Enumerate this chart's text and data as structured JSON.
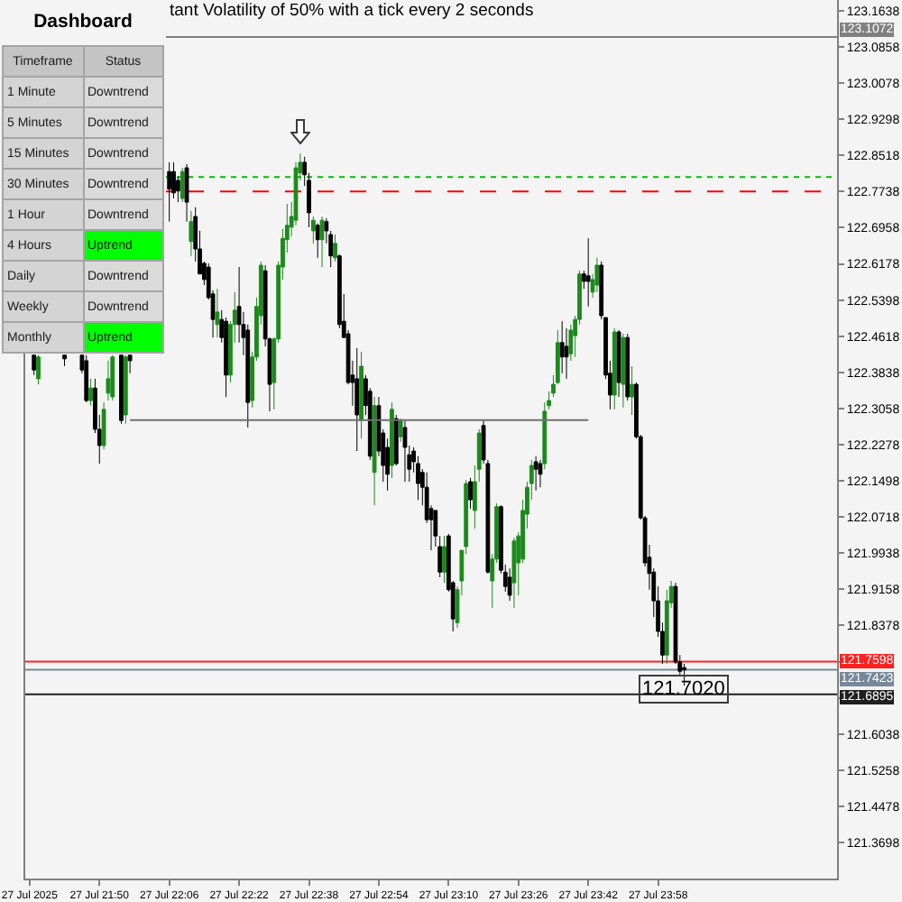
{
  "chart_data": [
    {
      "type": "candlestick",
      "title": "tant Volatility of 50% with a tick every 2 seconds",
      "x": [
        "2025-07-27T21:35",
        "2025-07-27T21:36",
        "2025-07-27T21:42",
        "2025-07-27T21:46",
        "2025-07-27T21:47",
        "2025-07-27T21:48",
        "2025-07-27T21:49",
        "2025-07-27T21:50",
        "2025-07-27T21:51",
        "2025-07-27T21:52",
        "2025-07-27T21:53",
        "2025-07-27T21:55",
        "2025-07-27T21:56",
        "2025-07-27T21:57",
        "2025-07-27T22:06",
        "2025-07-27T22:07",
        "2025-07-27T22:08",
        "2025-07-27T22:09",
        "2025-07-27T22:10",
        "2025-07-27T22:11",
        "2025-07-27T22:12",
        "2025-07-27T22:13",
        "2025-07-27T22:14",
        "2025-07-27T22:15",
        "2025-07-27T22:16",
        "2025-07-27T22:17",
        "2025-07-27T22:18",
        "2025-07-27T22:19",
        "2025-07-27T22:20",
        "2025-07-27T22:21",
        "2025-07-27T22:22",
        "2025-07-27T22:23",
        "2025-07-27T22:24",
        "2025-07-27T22:25",
        "2025-07-27T22:26",
        "2025-07-27T22:27",
        "2025-07-27T22:28",
        "2025-07-27T22:29",
        "2025-07-27T22:30",
        "2025-07-27T22:31",
        "2025-07-27T22:32",
        "2025-07-27T22:33",
        "2025-07-27T22:34",
        "2025-07-27T22:35",
        "2025-07-27T22:36",
        "2025-07-27T22:37",
        "2025-07-27T22:38",
        "2025-07-27T22:39",
        "2025-07-27T22:40",
        "2025-07-27T22:41",
        "2025-07-27T22:42",
        "2025-07-27T22:43",
        "2025-07-27T22:44",
        "2025-07-27T22:45",
        "2025-07-27T22:46",
        "2025-07-27T22:47",
        "2025-07-27T22:48",
        "2025-07-27T22:49",
        "2025-07-27T22:50",
        "2025-07-27T22:51",
        "2025-07-27T22:52",
        "2025-07-27T22:53",
        "2025-07-27T22:54",
        "2025-07-27T22:55",
        "2025-07-27T22:56",
        "2025-07-27T22:57",
        "2025-07-27T22:58",
        "2025-07-27T22:59",
        "2025-07-27T23:00",
        "2025-07-27T23:01",
        "2025-07-27T23:02",
        "2025-07-27T23:03",
        "2025-07-27T23:04",
        "2025-07-27T23:05",
        "2025-07-27T23:06",
        "2025-07-27T23:07",
        "2025-07-27T23:08",
        "2025-07-27T23:09",
        "2025-07-27T23:10",
        "2025-07-27T23:11",
        "2025-07-27T23:12",
        "2025-07-27T23:13",
        "2025-07-27T23:14",
        "2025-07-27T23:15",
        "2025-07-27T23:16",
        "2025-07-27T23:17",
        "2025-07-27T23:18",
        "2025-07-27T23:19",
        "2025-07-27T23:20",
        "2025-07-27T23:21",
        "2025-07-27T23:22",
        "2025-07-27T23:23",
        "2025-07-27T23:24",
        "2025-07-27T23:25",
        "2025-07-27T23:26",
        "2025-07-27T23:27",
        "2025-07-27T23:28",
        "2025-07-27T23:29",
        "2025-07-27T23:30",
        "2025-07-27T23:31",
        "2025-07-27T23:32",
        "2025-07-27T23:33",
        "2025-07-27T23:34",
        "2025-07-27T23:35",
        "2025-07-27T23:36",
        "2025-07-27T23:37",
        "2025-07-27T23:38",
        "2025-07-27T23:39",
        "2025-07-27T23:40",
        "2025-07-27T23:41",
        "2025-07-27T23:42",
        "2025-07-27T23:43",
        "2025-07-27T23:44",
        "2025-07-27T23:45",
        "2025-07-27T23:46",
        "2025-07-27T23:47",
        "2025-07-27T23:48",
        "2025-07-27T23:49",
        "2025-07-27T23:50",
        "2025-07-27T23:51",
        "2025-07-27T23:52",
        "2025-07-27T23:53",
        "2025-07-27T23:54",
        "2025-07-27T23:55",
        "2025-07-27T23:56",
        "2025-07-27T23:57",
        "2025-07-27T23:58",
        "2025-07-27T23:59",
        "2025-07-28T00:00",
        "2025-07-28T00:01",
        "2025-07-28T00:02",
        "2025-07-28T00:03",
        "2025-07-28T00:04"
      ],
      "ohlc": [
        [
          122.421,
          122.421,
          122.378,
          122.389
        ],
        [
          122.37,
          122.421,
          122.358,
          122.417
        ],
        [
          122.421,
          122.421,
          122.397,
          122.413
        ],
        [
          122.421,
          122.421,
          122.382,
          122.389
        ],
        [
          122.409,
          122.421,
          122.319,
          122.323
        ],
        [
          122.323,
          122.37,
          122.312,
          122.35
        ],
        [
          122.35,
          122.37,
          122.253,
          122.261
        ],
        [
          122.261,
          122.292,
          122.187,
          122.226
        ],
        [
          122.226,
          122.319,
          122.218,
          122.304
        ],
        [
          122.339,
          122.409,
          122.323,
          122.37
        ],
        [
          122.331,
          122.421,
          122.323,
          122.417
        ],
        [
          122.421,
          122.421,
          122.273,
          122.28
        ],
        [
          122.292,
          122.421,
          122.273,
          122.417
        ],
        [
          122.421,
          122.421,
          122.382,
          122.409
        ],
        [
          122.817,
          122.837,
          122.709,
          122.779
        ],
        [
          122.817,
          122.837,
          122.759,
          122.771
        ],
        [
          122.798,
          122.806,
          122.751,
          122.775
        ],
        [
          122.759,
          122.825,
          122.751,
          122.817
        ],
        [
          122.825,
          122.833,
          122.709,
          122.751
        ],
        [
          122.666,
          122.732,
          122.635,
          122.709
        ],
        [
          122.72,
          122.74,
          122.623,
          122.65
        ],
        [
          122.65,
          122.689,
          122.596,
          122.596
        ],
        [
          122.619,
          122.623,
          122.572,
          122.584
        ],
        [
          122.611,
          122.619,
          122.541,
          122.545
        ],
        [
          122.553,
          122.561,
          122.459,
          122.498
        ],
        [
          122.487,
          122.564,
          122.459,
          122.514
        ],
        [
          122.498,
          122.518,
          122.448,
          122.459
        ],
        [
          122.494,
          122.502,
          122.331,
          122.378
        ],
        [
          122.378,
          122.494,
          122.362,
          122.487
        ],
        [
          122.487,
          122.557,
          122.448,
          122.518
        ],
        [
          122.526,
          122.611,
          122.448,
          122.487
        ],
        [
          122.487,
          122.514,
          122.421,
          122.459
        ],
        [
          122.475,
          122.487,
          122.265,
          122.319
        ],
        [
          122.323,
          122.428,
          122.308,
          122.417
        ],
        [
          122.417,
          122.545,
          122.409,
          122.526
        ],
        [
          122.506,
          122.623,
          122.487,
          122.615
        ],
        [
          122.603,
          122.615,
          122.44,
          122.456
        ],
        [
          122.456,
          122.459,
          122.3,
          122.358
        ],
        [
          122.362,
          122.459,
          122.304,
          122.456
        ],
        [
          122.456,
          122.623,
          122.448,
          122.615
        ],
        [
          122.611,
          122.693,
          122.584,
          122.673
        ],
        [
          122.67,
          122.747,
          122.642,
          122.701
        ],
        [
          122.697,
          122.751,
          122.677,
          122.72
        ],
        [
          122.712,
          122.837,
          122.701,
          122.825
        ],
        [
          122.814,
          122.856,
          122.798,
          122.837
        ],
        [
          122.837,
          122.849,
          122.786,
          122.81
        ],
        [
          122.798,
          122.814,
          122.697,
          122.728
        ],
        [
          122.689,
          122.72,
          122.662,
          122.712
        ],
        [
          122.701,
          122.705,
          122.631,
          122.67
        ],
        [
          122.67,
          122.72,
          122.611,
          122.712
        ],
        [
          122.709,
          122.716,
          122.662,
          122.689
        ],
        [
          122.681,
          122.689,
          122.611,
          122.635
        ],
        [
          122.631,
          122.681,
          122.623,
          122.662
        ],
        [
          122.635,
          122.638,
          122.479,
          122.487
        ],
        [
          122.494,
          122.553,
          122.459,
          122.459
        ],
        [
          122.467,
          122.475,
          122.358,
          122.362
        ],
        [
          122.378,
          122.409,
          122.312,
          122.362
        ],
        [
          122.37,
          122.436,
          122.214,
          122.292
        ],
        [
          122.28,
          122.428,
          122.241,
          122.397
        ],
        [
          122.37,
          122.378,
          122.292,
          122.312
        ],
        [
          122.343,
          122.35,
          122.195,
          122.203
        ],
        [
          122.168,
          122.331,
          122.097,
          122.312
        ],
        [
          122.312,
          122.331,
          122.203,
          122.214
        ],
        [
          122.253,
          122.261,
          122.148,
          122.183
        ],
        [
          122.222,
          122.241,
          122.129,
          122.164
        ],
        [
          122.183,
          122.319,
          122.156,
          122.304
        ],
        [
          122.284,
          122.292,
          122.183,
          122.187
        ],
        [
          122.245,
          122.284,
          122.234,
          122.28
        ],
        [
          122.265,
          122.28,
          122.148,
          122.222
        ],
        [
          122.206,
          122.226,
          122.148,
          122.175
        ],
        [
          122.214,
          122.222,
          122.168,
          122.191
        ],
        [
          122.187,
          122.203,
          122.109,
          122.144
        ],
        [
          122.168,
          122.175,
          122.097,
          122.136
        ],
        [
          122.136,
          122.168,
          122.059,
          122.066
        ],
        [
          122.09,
          122.097,
          122.0,
          122.066
        ],
        [
          122.086,
          122.086,
          122.008,
          122.031
        ],
        [
          122.008,
          122.031,
          121.942,
          121.953
        ],
        [
          121.953,
          122.031,
          121.93,
          122.008
        ],
        [
          122.031,
          122.035,
          121.911,
          121.915
        ],
        [
          121.93,
          121.934,
          121.825,
          121.852
        ],
        [
          121.844,
          121.922,
          121.833,
          121.915
        ],
        [
          121.934,
          122.0,
          121.903,
          122.0
        ],
        [
          122.008,
          122.152,
          121.992,
          122.144
        ],
        [
          122.148,
          122.156,
          122.09,
          122.109
        ],
        [
          122.086,
          122.183,
          122.047,
          122.148
        ],
        [
          122.175,
          122.261,
          122.148,
          122.253
        ],
        [
          122.269,
          122.28,
          122.187,
          122.195
        ],
        [
          122.187,
          122.195,
          121.95,
          121.953
        ],
        [
          121.934,
          121.992,
          121.876,
          121.981
        ],
        [
          121.981,
          122.101,
          121.973,
          122.094
        ],
        [
          122.094,
          122.097,
          121.95,
          121.957
        ],
        [
          121.953,
          121.969,
          121.911,
          121.922
        ],
        [
          121.942,
          121.961,
          121.891,
          121.903
        ],
        [
          121.93,
          122.027,
          121.876,
          122.02
        ],
        [
          121.973,
          122.039,
          121.903,
          122.031
        ],
        [
          121.981,
          122.109,
          121.973,
          122.086
        ],
        [
          122.078,
          122.148,
          122.047,
          122.136
        ],
        [
          122.144,
          122.195,
          122.109,
          122.183
        ],
        [
          122.191,
          122.203,
          122.129,
          122.175
        ],
        [
          122.187,
          122.195,
          122.136,
          122.164
        ],
        [
          122.187,
          122.319,
          122.175,
          122.3
        ],
        [
          122.312,
          122.343,
          122.304,
          122.323
        ],
        [
          122.339,
          122.378,
          122.331,
          122.358
        ],
        [
          122.362,
          122.475,
          122.358,
          122.448
        ],
        [
          122.448,
          122.494,
          122.382,
          122.417
        ],
        [
          122.44,
          122.479,
          122.37,
          122.417
        ],
        [
          122.424,
          122.487,
          122.409,
          122.475
        ],
        [
          122.463,
          122.506,
          122.417,
          122.498
        ],
        [
          122.498,
          122.603,
          122.487,
          122.596
        ],
        [
          122.596,
          122.603,
          122.564,
          122.58
        ],
        [
          122.592,
          122.673,
          122.526,
          122.58
        ],
        [
          122.557,
          122.596,
          122.545,
          122.584
        ],
        [
          122.572,
          122.631,
          122.557,
          122.615
        ],
        [
          122.615,
          122.623,
          122.498,
          122.506
        ],
        [
          122.502,
          122.502,
          122.37,
          122.378
        ],
        [
          122.382,
          122.409,
          122.304,
          122.335
        ],
        [
          122.335,
          122.479,
          122.304,
          122.471
        ],
        [
          122.471,
          122.475,
          122.331,
          122.362
        ],
        [
          122.358,
          122.467,
          122.308,
          122.459
        ],
        [
          122.459,
          122.467,
          122.323,
          122.331
        ],
        [
          122.331,
          122.397,
          122.292,
          122.358
        ],
        [
          122.358,
          122.362,
          122.241,
          122.245
        ],
        [
          122.245,
          122.249,
          122.066,
          122.07
        ],
        [
          122.07,
          122.074,
          121.965,
          121.973
        ],
        [
          121.985,
          122.012,
          121.915,
          121.95
        ],
        [
          121.953,
          121.961,
          121.856,
          121.891
        ],
        [
          121.891,
          121.922,
          121.813,
          121.825
        ],
        [
          121.825,
          121.844,
          121.755,
          121.774
        ],
        [
          121.774,
          121.915,
          121.755,
          121.891
        ],
        [
          121.887,
          121.934,
          121.876,
          121.922
        ],
        [
          121.922,
          121.93,
          121.755,
          121.759
        ],
        [
          121.759,
          121.774,
          121.732,
          121.739
        ],
        [
          121.747,
          121.755,
          121.708,
          121.742
        ]
      ],
      "colors": [
        "#000000",
        "#1b8a1b",
        "#000000",
        "#000000",
        "#000000",
        "#1b8a1b",
        "#000000",
        "#000000",
        "#1b8a1b",
        "#1b8a1b",
        "#1b8a1b",
        "#000000",
        "#1b8a1b",
        "#000000",
        "#000000",
        "#000000",
        "#000000",
        "#1b8a1b",
        "#000000",
        "#1b8a1b",
        "#000000",
        "#000000",
        "#000000",
        "#000000",
        "#000000",
        "#1b8a1b",
        "#000000",
        "#000000",
        "#1b8a1b",
        "#1b8a1b",
        "#000000",
        "#000000",
        "#000000",
        "#1b8a1b",
        "#1b8a1b",
        "#1b8a1b",
        "#000000",
        "#000000",
        "#1b8a1b",
        "#1b8a1b",
        "#1b8a1b",
        "#1b8a1b",
        "#1b8a1b",
        "#1b8a1b",
        "#1b8a1b",
        "#000000",
        "#000000",
        "#1b8a1b",
        "#000000",
        "#1b8a1b",
        "#000000",
        "#000000",
        "#1b8a1b",
        "#000000",
        "#000000",
        "#000000",
        "#000000",
        "#000000",
        "#1b8a1b",
        "#000000",
        "#000000",
        "#1b8a1b",
        "#000000",
        "#000000",
        "#000000",
        "#1b8a1b",
        "#000000",
        "#1b8a1b",
        "#000000",
        "#000000",
        "#000000",
        "#000000",
        "#000000",
        "#000000",
        "#000000",
        "#000000",
        "#000000",
        "#1b8a1b",
        "#000000",
        "#000000",
        "#1b8a1b",
        "#1b8a1b",
        "#1b8a1b",
        "#000000",
        "#1b8a1b",
        "#1b8a1b",
        "#000000",
        "#000000",
        "#1b8a1b",
        "#1b8a1b",
        "#000000",
        "#000000",
        "#000000",
        "#1b8a1b",
        "#1b8a1b",
        "#1b8a1b",
        "#1b8a1b",
        "#1b8a1b",
        "#000000",
        "#000000",
        "#1b8a1b",
        "#1b8a1b",
        "#1b8a1b",
        "#1b8a1b",
        "#000000",
        "#000000",
        "#1b8a1b",
        "#1b8a1b",
        "#1b8a1b",
        "#000000",
        "#000000",
        "#1b8a1b",
        "#1b8a1b",
        "#000000",
        "#000000",
        "#000000",
        "#1b8a1b",
        "#000000",
        "#1b8a1b",
        "#000000",
        "#1b8a1b",
        "#000000",
        "#000000",
        "#000000",
        "#000000",
        "#000000",
        "#000000",
        "#000000",
        "#1b8a1b",
        "#1b8a1b",
        "#000000",
        "#000000",
        "#000000"
      ],
      "series": [
        {
          "type": "line",
          "x": [
            "2025-07-27T21:57",
            "2025-07-27T23:42"
          ],
          "values": [
            122.281,
            122.281
          ],
          "color": "#707070"
        }
      ],
      "xlim": [
        "2025-07-27T21:33",
        "2025-07-28T00:39"
      ],
      "xticks": [
        {
          "value": "2025-07-27T21:34",
          "label": "27 Jul 2025"
        },
        {
          "value": "2025-07-27T21:50",
          "label": "27 Jul 21:50"
        },
        {
          "value": "2025-07-27T22:06",
          "label": "27 Jul 22:06"
        },
        {
          "value": "2025-07-27T22:22",
          "label": "27 Jul 22:22"
        },
        {
          "value": "2025-07-27T22:38",
          "label": "27 Jul 22:38"
        },
        {
          "value": "2025-07-27T22:54",
          "label": "27 Jul 22:54"
        },
        {
          "value": "2025-07-27T23:10",
          "label": "27 Jul 23:10"
        },
        {
          "value": "2025-07-27T23:26",
          "label": "27 Jul 23:26"
        },
        {
          "value": "2025-07-27T23:42",
          "label": "27 Jul 23:42"
        },
        {
          "value": "2025-07-27T23:58",
          "label": "27 Jul 23:58"
        }
      ],
      "ylim": [
        121.292,
        123.187
      ],
      "yticks": [
        121.3698,
        121.4478,
        121.5258,
        121.6038,
        {
          "value": 121.6818,
          "label": null
        },
        {
          "value": 121.7598,
          "label": null
        },
        121.8378,
        121.9158,
        121.9938,
        122.0718,
        122.1498,
        122.2278,
        122.3058,
        122.3838,
        122.4618,
        122.5398,
        122.6178,
        122.6958,
        122.7738,
        122.8518,
        122.9298,
        123.0078,
        123.0858,
        123.1638
      ],
      "ref_lines": [
        {
          "axis": "y",
          "value": 123.1072,
          "label": "123.1072",
          "color": "#808080"
        },
        {
          "axis": "y",
          "value": 122.805,
          "color": "#00c000",
          "line_style": "dotted"
        },
        {
          "axis": "y",
          "value": 122.774,
          "color": "#ff0000",
          "line_style": "dashed"
        },
        {
          "axis": "y",
          "value": 121.7598,
          "label": "121.7598",
          "color": "#ff2020"
        },
        {
          "axis": "y",
          "value": 121.7423,
          "label": "121.7423",
          "color": "#778899"
        },
        {
          "axis": "y",
          "value": 121.6895,
          "label": "121.6895",
          "color": "#202020"
        }
      ],
      "annotations": [
        {
          "text": "121.7020",
          "x": "2025-07-28T00:04",
          "y": 121.702
        }
      ]
    },
    {
      "type": "other",
      "title": "Dashboard",
      "categories": [
        "Timeframe",
        "Status"
      ],
      "cell_labels": [
        [
          "1 Minute",
          "Downtrend"
        ],
        [
          "5 Minutes",
          "Downtrend"
        ],
        [
          "15 Minutes",
          "Downtrend"
        ],
        [
          "30 Minutes",
          "Downtrend"
        ],
        [
          "1 Hour",
          "Downtrend"
        ],
        [
          "4 Hours",
          "Uptrend"
        ],
        [
          "Daily",
          "Downtrend"
        ],
        [
          "Weekly",
          "Downtrend"
        ],
        [
          "Monthly",
          "Uptrend"
        ]
      ],
      "colors": [
        "#dadada",
        "#dadada",
        "#dadada",
        "#dadada",
        "#dadada",
        "#00ff00",
        "#dadada",
        "#dadada",
        "#00ff00"
      ]
    }
  ]
}
